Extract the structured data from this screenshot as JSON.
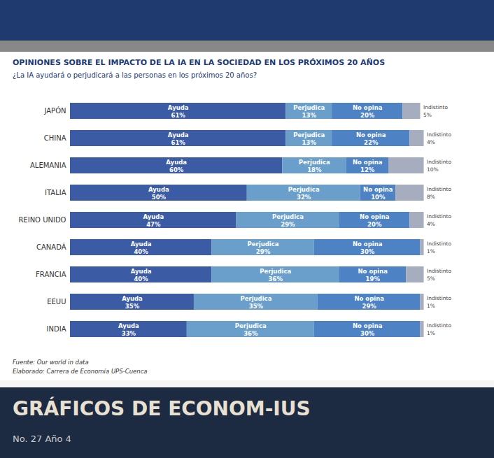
{
  "chart_data": {
    "type": "bar",
    "orientation": "horizontal",
    "stacked": true,
    "title": "OPINIONES SOBRE EL IMPACTO DE LA IA EN LA SOCIEDAD EN LOS PRÓXIMOS 20 AÑOS",
    "subtitle": "¿La IA ayudará o perjudicará a las personas en los próximos 20 años?",
    "categories": [
      "JAPÓN",
      "CHINA",
      "ALEMANIA",
      "ITALIA",
      "REINO UNIDO",
      "CANADÁ",
      "FRANCIA",
      "EEUU",
      "INDIA"
    ],
    "series": [
      {
        "name": "Ayuda",
        "color": "#3B5BA5",
        "values": [
          61,
          61,
          60,
          50,
          47,
          40,
          40,
          35,
          33
        ],
        "value_labels": [
          "61%",
          "61%",
          "60%",
          "50%",
          "47%",
          "40%",
          "40%",
          "35%",
          "33%"
        ]
      },
      {
        "name": "Perjudica",
        "color": "#6A9FCC",
        "values": [
          13,
          13,
          18,
          32,
          29,
          29,
          36,
          35,
          36
        ],
        "value_labels": [
          "13%",
          "13%",
          "18%",
          "32%",
          "29%",
          "29%",
          "36%",
          "35%",
          "36%"
        ]
      },
      {
        "name": "No opina",
        "color": "#4D82C4",
        "values": [
          20,
          22,
          12,
          10,
          20,
          30,
          19,
          29,
          30
        ],
        "value_labels": [
          "20%",
          "22%",
          "12%",
          "10%",
          "20%",
          "30%",
          "19%",
          "29%",
          "30%"
        ]
      },
      {
        "name": "Indistinto",
        "color": "#A5ADBF",
        "values": [
          5,
          4,
          10,
          8,
          4,
          1,
          5,
          1,
          1
        ],
        "value_labels": [
          "5%",
          "4%",
          "10%",
          "8%",
          "4%",
          "1%",
          "5%",
          "1%",
          "1%"
        ]
      }
    ],
    "xlim": [
      0,
      108
    ],
    "data_labels": true,
    "tick_labels": "y",
    "grid": false,
    "caption": [
      "Fuente: Our world in data",
      "Elaborado: Carrera de Economía UPS-Cuenca"
    ],
    "footer": [
      "GRÁFICOS DE ECONOM-IUS",
      "No. 27 Año 4"
    ]
  }
}
